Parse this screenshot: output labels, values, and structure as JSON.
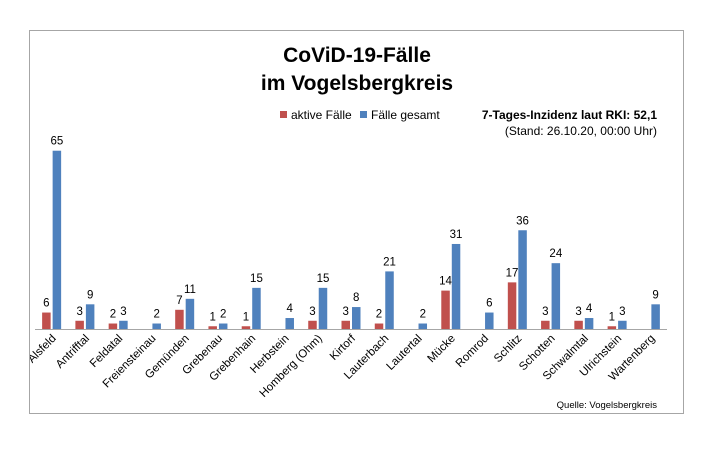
{
  "chart_data": {
    "type": "bar",
    "title": [
      "CoViD-19-Fälle",
      "im Vogelsbergkreis"
    ],
    "annotation": {
      "line1": "7-Tages-Inzidenz laut RKI: 52,1",
      "line2": "(Stand: 26.10.20, 00:00 Uhr)"
    },
    "source": "Quelle: Vogelsbergkreis",
    "legend_position": "top-center",
    "grid": false,
    "ylim": [
      0,
      70
    ],
    "categories": [
      "Alsfeld",
      "Antrifftal",
      "Feldatal",
      "Freiensteinau",
      "Gemünden",
      "Grebenau",
      "Grebenhain",
      "Herbstein",
      "Homberg (Ohm)",
      "Kirtorf",
      "Lauterbach",
      "Lautertal",
      "Mücke",
      "Romrod",
      "Schlitz",
      "Schotten",
      "Schwalmtal",
      "Ulrichstein",
      "Wartenberg"
    ],
    "series": [
      {
        "name": "aktive Fälle",
        "color": "#c0504d",
        "values": [
          6,
          3,
          2,
          null,
          7,
          1,
          1,
          null,
          3,
          3,
          2,
          null,
          14,
          null,
          17,
          3,
          3,
          1,
          null
        ]
      },
      {
        "name": "Fälle gesamt",
        "color": "#4f81bd",
        "values": [
          65,
          9,
          3,
          2,
          11,
          2,
          15,
          4,
          15,
          8,
          21,
          2,
          31,
          6,
          36,
          24,
          4,
          3,
          9
        ]
      }
    ]
  }
}
